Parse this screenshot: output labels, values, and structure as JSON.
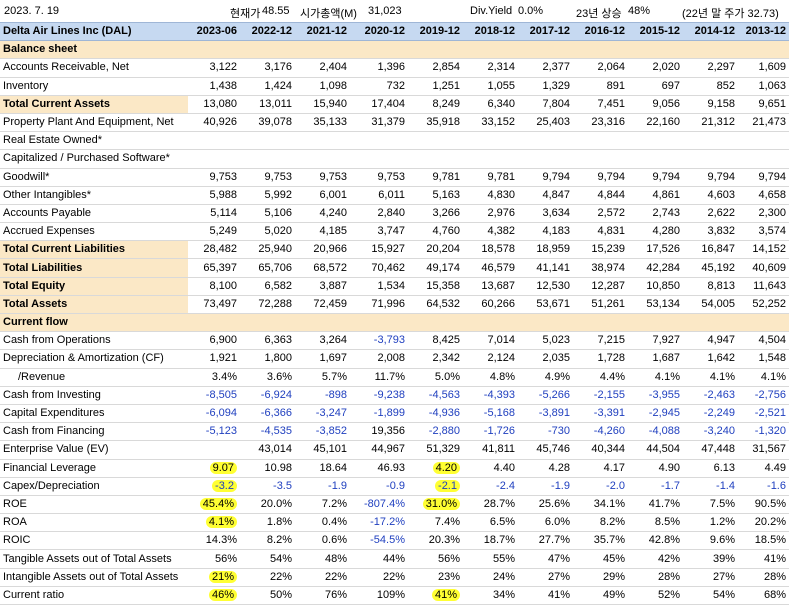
{
  "info": {
    "date": "2023. 7. 19",
    "price_label": "현재가",
    "price": "48.55",
    "mcap_label": "시가총액(M)",
    "mcap": "31,023",
    "yield_label": "Div.Yield",
    "yield": "0.0%",
    "rise_label": "23년 상승",
    "rise": "48%",
    "ref": "(22년 말 주가 32.73)"
  },
  "table": {
    "company": "Delta Air Lines Inc (DAL)",
    "columns": [
      "2023-06",
      "2022-12",
      "2021-12",
      "2020-12",
      "2019-12",
      "2018-12",
      "2017-12",
      "2016-12",
      "2015-12",
      "2014-12",
      "2013-12"
    ],
    "rows": [
      {
        "type": "section",
        "label": "Balance sheet",
        "values": []
      },
      {
        "label": "Accounts Receivable, Net",
        "values": [
          "3,122",
          "3,176",
          "2,404",
          "1,396",
          "2,854",
          "2,314",
          "2,377",
          "2,064",
          "2,020",
          "2,297",
          "1,609"
        ]
      },
      {
        "label": "Inventory",
        "values": [
          "1,438",
          "1,424",
          "1,098",
          "732",
          "1,251",
          "1,055",
          "1,329",
          "891",
          "697",
          "852",
          "1,063"
        ]
      },
      {
        "type": "bold",
        "label": "Total Current Assets",
        "values": [
          "13,080",
          "13,011",
          "15,940",
          "17,404",
          "8,249",
          "6,340",
          "7,804",
          "7,451",
          "9,056",
          "9,158",
          "9,651"
        ]
      },
      {
        "label": "Property Plant And Equipment, Net",
        "values": [
          "40,926",
          "39,078",
          "35,133",
          "31,379",
          "35,918",
          "33,152",
          "25,403",
          "23,316",
          "22,160",
          "21,312",
          "21,473"
        ]
      },
      {
        "label": "Real Estate Owned*",
        "values": []
      },
      {
        "label": "Capitalized / Purchased Software*",
        "values": []
      },
      {
        "label": "Goodwill*",
        "values": [
          "9,753",
          "9,753",
          "9,753",
          "9,753",
          "9,781",
          "9,781",
          "9,794",
          "9,794",
          "9,794",
          "9,794",
          "9,794"
        ]
      },
      {
        "label": "Other Intangibles*",
        "values": [
          "5,988",
          "5,992",
          "6,001",
          "6,011",
          "5,163",
          "4,830",
          "4,847",
          "4,844",
          "4,861",
          "4,603",
          "4,658"
        ]
      },
      {
        "label": "Accounts Payable",
        "values": [
          "5,114",
          "5,106",
          "4,240",
          "2,840",
          "3,266",
          "2,976",
          "3,634",
          "2,572",
          "2,743",
          "2,622",
          "2,300"
        ]
      },
      {
        "label": "Accrued Expenses",
        "values": [
          "5,249",
          "5,020",
          "4,185",
          "3,747",
          "4,760",
          "4,382",
          "4,183",
          "4,831",
          "4,280",
          "3,832",
          "3,574"
        ]
      },
      {
        "type": "bold",
        "label": "Total Current Liabilities",
        "values": [
          "28,482",
          "25,940",
          "20,966",
          "15,927",
          "20,204",
          "18,578",
          "18,959",
          "15,239",
          "17,526",
          "16,847",
          "14,152"
        ]
      },
      {
        "type": "bold",
        "label": "Total Liabilities",
        "values": [
          "65,397",
          "65,706",
          "68,572",
          "70,462",
          "49,174",
          "46,579",
          "41,141",
          "38,974",
          "42,284",
          "45,192",
          "40,609"
        ]
      },
      {
        "type": "bold",
        "label": "Total Equity",
        "values": [
          "8,100",
          "6,582",
          "3,887",
          "1,534",
          "15,358",
          "13,687",
          "12,530",
          "12,287",
          "10,850",
          "8,813",
          "11,643"
        ]
      },
      {
        "type": "bold",
        "label": "Total Assets",
        "values": [
          "73,497",
          "72,288",
          "72,459",
          "71,996",
          "64,532",
          "60,266",
          "53,671",
          "51,261",
          "53,134",
          "54,005",
          "52,252"
        ]
      },
      {
        "type": "section",
        "label": "Current flow",
        "values": []
      },
      {
        "label": "Cash from Operations",
        "values": [
          "6,900",
          "6,363",
          "3,264",
          "-3,793",
          "8,425",
          "7,014",
          "5,023",
          "7,215",
          "7,927",
          "4,947",
          "4,504"
        ]
      },
      {
        "label": "Depreciation & Amortization (CF)",
        "values": [
          "1,921",
          "1,800",
          "1,697",
          "2,008",
          "2,342",
          "2,124",
          "2,035",
          "1,728",
          "1,687",
          "1,642",
          "1,548"
        ]
      },
      {
        "label": "/Revenue",
        "indent": true,
        "values": [
          "3.4%",
          "3.6%",
          "5.7%",
          "11.7%",
          "5.0%",
          "4.8%",
          "4.9%",
          "4.4%",
          "4.1%",
          "4.1%",
          "4.1%"
        ]
      },
      {
        "label": "Cash from Investing",
        "values": [
          "-8,505",
          "-6,924",
          "-898",
          "-9,238",
          "-4,563",
          "-4,393",
          "-5,266",
          "-2,155",
          "-3,955",
          "-2,463",
          "-2,756"
        ]
      },
      {
        "label": "Capital Expenditures",
        "values": [
          "-6,094",
          "-6,366",
          "-3,247",
          "-1,899",
          "-4,936",
          "-5,168",
          "-3,891",
          "-3,391",
          "-2,945",
          "-2,249",
          "-2,521"
        ]
      },
      {
        "label": "Cash from Financing",
        "values": [
          "-5,123",
          "-4,535",
          "-3,852",
          "19,356",
          "-2,880",
          "-1,726",
          "-730",
          "-4,260",
          "-4,088",
          "-3,240",
          "-1,320"
        ]
      },
      {
        "label": "Enterprise Value (EV)",
        "values": [
          "",
          "43,014",
          "45,101",
          "44,967",
          "51,329",
          "41,811",
          "45,746",
          "40,344",
          "44,504",
          "47,448",
          "31,567"
        ]
      },
      {
        "label": "Financial Leverage",
        "values": [
          "9.07",
          "10.98",
          "18.64",
          "46.93",
          "4.20",
          "4.40",
          "4.28",
          "4.17",
          "4.90",
          "6.13",
          "4.49"
        ],
        "hl": [
          0,
          4
        ]
      },
      {
        "label": "Capex/Depreciation",
        "values": [
          "-3.2",
          "-3.5",
          "-1.9",
          "-0.9",
          "-2.1",
          "-2.4",
          "-1.9",
          "-2.0",
          "-1.7",
          "-1.4",
          "-1.6"
        ],
        "hl": [
          0,
          4
        ]
      },
      {
        "label": "ROE",
        "values": [
          "45.4%",
          "20.0%",
          "7.2%",
          "-807.4%",
          "31.0%",
          "28.7%",
          "25.6%",
          "34.1%",
          "41.7%",
          "7.5%",
          "90.5%"
        ],
        "hl": [
          0,
          4
        ]
      },
      {
        "label": "ROA",
        "values": [
          "4.1%",
          "1.8%",
          "0.4%",
          "-17.2%",
          "7.4%",
          "6.5%",
          "6.0%",
          "8.2%",
          "8.5%",
          "1.2%",
          "20.2%"
        ],
        "hl": [
          0
        ]
      },
      {
        "label": "ROIC",
        "values": [
          "14.3%",
          "8.2%",
          "0.6%",
          "-54.5%",
          "20.3%",
          "18.7%",
          "27.7%",
          "35.7%",
          "42.8%",
          "9.6%",
          "18.5%"
        ]
      },
      {
        "label": "Tangible Assets out of Total Assets",
        "values": [
          "56%",
          "54%",
          "48%",
          "44%",
          "56%",
          "55%",
          "47%",
          "45%",
          "42%",
          "39%",
          "41%"
        ]
      },
      {
        "label": "Intangible Assets out of Total Assets",
        "values": [
          "21%",
          "22%",
          "22%",
          "22%",
          "23%",
          "24%",
          "27%",
          "29%",
          "28%",
          "27%",
          "28%"
        ],
        "hl": [
          0
        ]
      },
      {
        "label": "Current ratio",
        "values": [
          "46%",
          "50%",
          "76%",
          "109%",
          "41%",
          "34%",
          "41%",
          "49%",
          "52%",
          "54%",
          "68%"
        ],
        "hl": [
          0,
          4
        ]
      }
    ]
  }
}
